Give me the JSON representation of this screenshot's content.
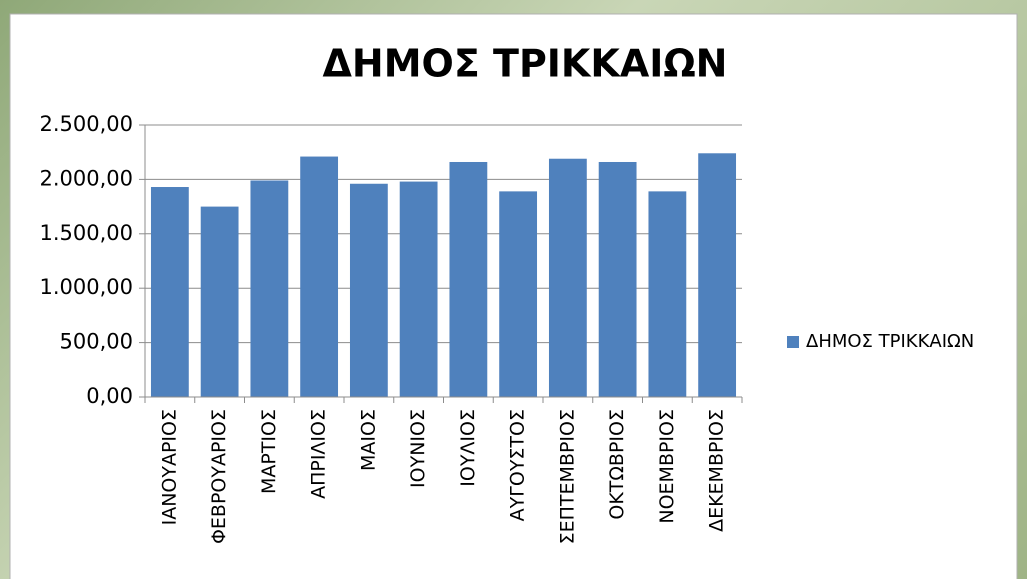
{
  "chart_data": {
    "type": "bar",
    "title": "ΔΗΜΟΣ ΤΡΙΚΚΑΙΩΝ",
    "categories": [
      "ΙΑΝΟΥΑΡΙΟΣ",
      "ΦΕΒΡΟΥΑΡΙΟΣ",
      "ΜΑΡΤΙΟΣ",
      "ΑΠΡΙΛΙΟΣ",
      "ΜΑΙΟΣ",
      "ΙΟΥΝΙΟΣ",
      "ΙΟΥΛΙΟΣ",
      "ΑΥΓΟΥΣΤΟΣ",
      "ΣΕΠΤΕΜΒΡΙΟΣ",
      "ΟΚΤΩΒΡΙΟΣ",
      "ΝΟΕΜΒΡΙΟΣ",
      "ΔΕΚΕΜΒΡΙΟΣ"
    ],
    "series": [
      {
        "name": "ΔΗΜΟΣ ΤΡΙΚΚΑΙΩΝ",
        "color": "#4f81bd",
        "values": [
          1930,
          1750,
          1990,
          2210,
          1960,
          1980,
          2160,
          1890,
          2190,
          2160,
          1890,
          2240
        ]
      }
    ],
    "ylim": [
      0,
      2500
    ],
    "yticks": [
      {
        "value": 0,
        "label": "0,00"
      },
      {
        "value": 500,
        "label": "500,00"
      },
      {
        "value": 1000,
        "label": "1.000,00"
      },
      {
        "value": 1500,
        "label": "1.500,00"
      },
      {
        "value": 2000,
        "label": "2.000,00"
      },
      {
        "value": 2500,
        "label": "2.500,00"
      }
    ],
    "grid": true,
    "legend": "right"
  }
}
